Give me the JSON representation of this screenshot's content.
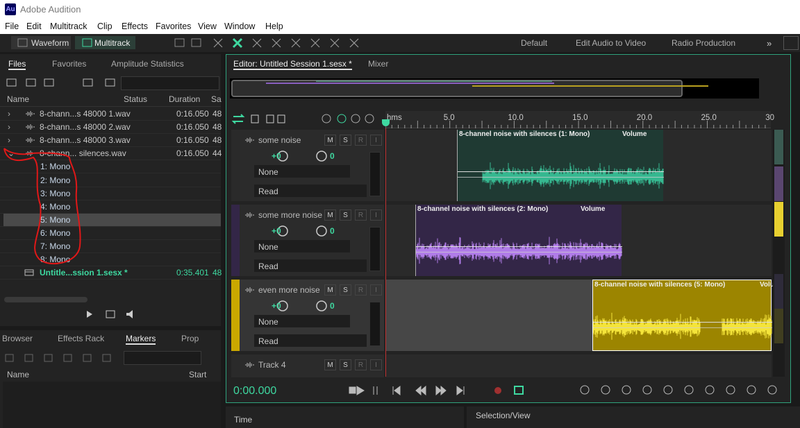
{
  "title_bar": {
    "icon": "Au",
    "title": "Adobe Audition"
  },
  "menu": [
    "File",
    "Edit",
    "Multitrack",
    "Clip",
    "Effects",
    "Favorites",
    "View",
    "Window",
    "Help"
  ],
  "toolbar": {
    "modes": [
      "Waveform",
      "Multitrack"
    ],
    "workspaces": [
      "Default",
      "Edit Audio to Video",
      "Radio Production"
    ]
  },
  "files_panel": {
    "tabs": [
      "Files",
      "Favorites",
      "Amplitude Statistics"
    ],
    "columns": [
      "Name",
      "Status",
      "Duration",
      "Sa"
    ],
    "rows": [
      {
        "name": "8-chann...s 48000 1.wav",
        "duration": "0:16.050",
        "sample_rate": "48"
      },
      {
        "name": "8-chann...s 48000 2.wav",
        "duration": "0:16.050",
        "sample_rate": "48"
      },
      {
        "name": "8-chann...s 48000 3.wav",
        "duration": "0:16.050",
        "sample_rate": "48"
      },
      {
        "name": "8-chann... silences.wav",
        "duration": "0:16.050",
        "sample_rate": "44"
      },
      {
        "name": "1: Mono"
      },
      {
        "name": "2: Mono"
      },
      {
        "name": "3: Mono"
      },
      {
        "name": "4: Mono"
      },
      {
        "name": "5: Mono"
      },
      {
        "name": "6: Mono"
      },
      {
        "name": "7: Mono"
      },
      {
        "name": "8: Mono"
      },
      {
        "name": "Untitle...ssion 1.sesx *",
        "duration": "0:35.401",
        "sample_rate": "48"
      }
    ]
  },
  "markers_panel": {
    "tabs": [
      "Browser",
      "Effects Rack",
      "Markers",
      "Prop"
    ],
    "columns": [
      "Name",
      "Start"
    ]
  },
  "editor": {
    "tabs": [
      "Editor: Untitled Session 1.sesx *",
      "Mixer"
    ],
    "ruler": [
      "hms",
      "5.0",
      "10.0",
      "15.0",
      "20.0",
      "25.0",
      "30"
    ],
    "track_buttons": [
      "M",
      "S",
      "R",
      "I"
    ],
    "tracks": [
      {
        "name": "some noise",
        "volume": "+0",
        "pan": "0",
        "input": "None",
        "automation": "Read",
        "clip": {
          "title": "8-channel noise with silences (1: Mono)",
          "envelope": "Volume"
        }
      },
      {
        "name": "some more noise",
        "volume": "+0",
        "pan": "0",
        "input": "None",
        "automation": "Read",
        "clip": {
          "title": "8-channel noise with silences (2: Mono)",
          "envelope": "Volume"
        }
      },
      {
        "name": "even more noise",
        "volume": "+0",
        "pan": "0",
        "input": "None",
        "automation": "Read",
        "clip": {
          "title": "8-channel noise with silences (5: Mono)",
          "envelope": "Volu"
        }
      },
      {
        "name": "Track 4"
      }
    ],
    "time": "0:00.000"
  },
  "bottom_panels": [
    "Time",
    "Selection/View"
  ]
}
